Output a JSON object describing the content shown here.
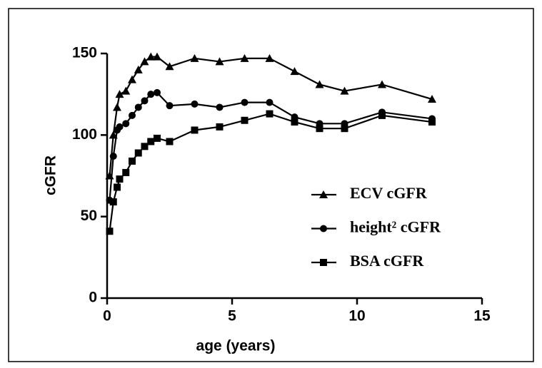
{
  "chart_data": {
    "type": "line",
    "xlabel": "age (years)",
    "ylabel": "cGFR",
    "xlim": [
      0,
      15
    ],
    "xticks": [
      0,
      5,
      10,
      15
    ],
    "ylim": [
      0,
      150
    ],
    "yticks": [
      0,
      50,
      100,
      150
    ],
    "x": [
      0.1,
      0.25,
      0.4,
      0.5,
      0.75,
      1,
      1.25,
      1.5,
      1.75,
      2,
      2.5,
      3.5,
      4.5,
      5.5,
      6.5,
      7.5,
      8.5,
      9.5,
      11,
      13
    ],
    "series": [
      {
        "name": "ECV cGFR",
        "color": "#000000",
        "marker": "triangle",
        "values": [
          75,
          100,
          117,
          125,
          127,
          134,
          140,
          145,
          148,
          148,
          142,
          147,
          145,
          147,
          147,
          139,
          131,
          127,
          131,
          122
        ]
      },
      {
        "name": "height² cGFR",
        "color": "#000000",
        "marker": "circle",
        "values": [
          60,
          87,
          103,
          105,
          107,
          112,
          117,
          121,
          125,
          126,
          118,
          119,
          117,
          120,
          120,
          111,
          107,
          107,
          114,
          110
        ]
      },
      {
        "name": "BSA cGFR",
        "color": "#000000",
        "marker": "square",
        "values": [
          41,
          59,
          68,
          73,
          77,
          84,
          89,
          93,
          96,
          98,
          96,
          103,
          105,
          109,
          113,
          108,
          104,
          104,
          112,
          108
        ]
      }
    ]
  }
}
